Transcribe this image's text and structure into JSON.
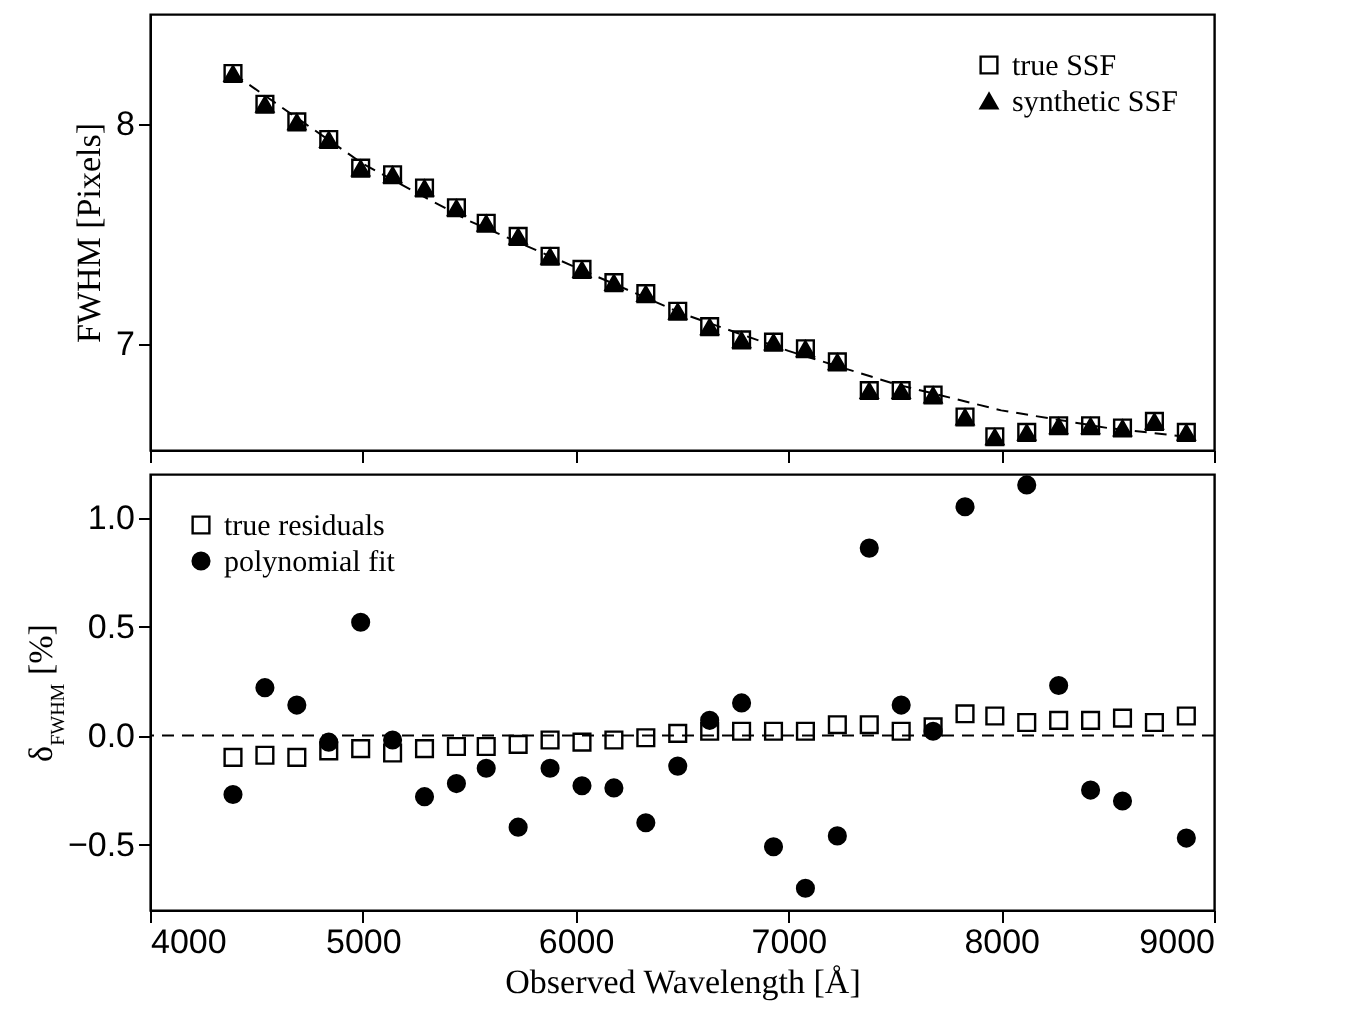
{
  "chart_data": [
    {
      "type": "scatter",
      "ylabel": "FWHM [Pixels]",
      "xlim": [
        4000,
        9000
      ],
      "xticks": [
        4000,
        5000,
        6000,
        7000,
        8000,
        9000
      ],
      "ylim": [
        6.52,
        8.5
      ],
      "yticks": [
        7,
        8
      ],
      "tick_labels": "y",
      "legend": "top right",
      "x": [
        4390,
        4540,
        4690,
        4840,
        4990,
        5140,
        5290,
        5440,
        5580,
        5730,
        5880,
        6030,
        6180,
        6330,
        6480,
        6630,
        6780,
        6930,
        7080,
        7230,
        7380,
        7530,
        7680,
        7830,
        7970,
        8120,
        8270,
        8420,
        8570,
        8720,
        8870
      ],
      "series": [
        {
          "name": "true SSF",
          "color": "#000000",
          "marker": "square",
          "values": [
            8.23,
            8.09,
            8.01,
            7.93,
            7.8,
            7.77,
            7.71,
            7.62,
            7.55,
            7.49,
            7.4,
            7.34,
            7.28,
            7.23,
            7.15,
            7.08,
            7.02,
            7.01,
            6.98,
            6.92,
            6.79,
            6.79,
            6.77,
            6.67,
            6.58,
            6.6,
            6.63,
            6.63,
            6.62,
            6.65,
            6.6
          ]
        },
        {
          "name": "synthetic SSF",
          "color": "#000000",
          "marker": "triangle",
          "values": [
            8.23,
            8.09,
            8.01,
            7.93,
            7.8,
            7.77,
            7.71,
            7.62,
            7.55,
            7.49,
            7.4,
            7.34,
            7.28,
            7.23,
            7.15,
            7.08,
            7.02,
            7.01,
            6.98,
            6.92,
            6.79,
            6.79,
            6.77,
            6.67,
            6.58,
            6.6,
            6.63,
            6.63,
            6.62,
            6.65,
            6.6
          ]
        },
        {
          "type": "line",
          "color": "#000000",
          "line_style": "dashed",
          "x": [
            4390,
            5000,
            5500,
            6000,
            6500,
            7000,
            7500,
            8000,
            8500,
            8870
          ],
          "values": [
            8.23,
            7.82,
            7.56,
            7.35,
            7.14,
            6.97,
            6.82,
            6.7,
            6.62,
            6.58
          ]
        }
      ]
    },
    {
      "type": "scatter",
      "xlabel": "Observed Wavelength [Å]",
      "ylabel": "δ$_{FWHM}$ [%]",
      "xlim": [
        4000,
        9000
      ],
      "xticks": [
        4000,
        5000,
        6000,
        7000,
        8000,
        9000
      ],
      "ylim": [
        -0.8,
        1.2
      ],
      "yticks": [
        {
          "value": -0.5,
          "label": "−0.5"
        },
        {
          "value": 0,
          "label": "0.0"
        },
        {
          "value": 0.5,
          "label": "0.5"
        },
        {
          "value": 1,
          "label": "1.0"
        }
      ],
      "legend": "top left",
      "x": [
        4390,
        4540,
        4690,
        4840,
        4990,
        5140,
        5290,
        5440,
        5580,
        5730,
        5880,
        6030,
        6180,
        6330,
        6480,
        6630,
        6780,
        6930,
        7080,
        7230,
        7380,
        7530,
        7680,
        7830,
        7970,
        8120,
        8270,
        8420,
        8570,
        8720,
        8870
      ],
      "ref_lines": [
        {
          "axis": "y",
          "value": 0,
          "line_style": "dashed"
        }
      ],
      "series": [
        {
          "name": "true residuals",
          "color": "#000000",
          "marker": "square",
          "values": [
            -0.1,
            -0.09,
            -0.1,
            -0.07,
            -0.06,
            -0.08,
            -0.06,
            -0.05,
            -0.05,
            -0.04,
            -0.02,
            -0.03,
            -0.02,
            -0.01,
            0.01,
            0.02,
            0.02,
            0.02,
            0.02,
            0.05,
            0.05,
            0.02,
            0.04,
            0.1,
            0.09,
            0.06,
            0.07,
            0.07,
            0.08,
            0.06,
            0.09
          ]
        },
        {
          "name": "polynomial fit",
          "color": "#000000",
          "marker": "circle",
          "values": [
            -0.27,
            0.22,
            0.14,
            -0.03,
            0.52,
            -0.02,
            -0.28,
            -0.22,
            -0.15,
            -0.42,
            -0.15,
            -0.23,
            -0.24,
            -0.4,
            -0.14,
            0.07,
            0.15,
            -0.51,
            -0.7,
            -0.46,
            0.86,
            0.14,
            0.02,
            1.05,
            null,
            1.15,
            0.23,
            -0.25,
            -0.3,
            null,
            -0.47
          ]
        }
      ]
    }
  ]
}
